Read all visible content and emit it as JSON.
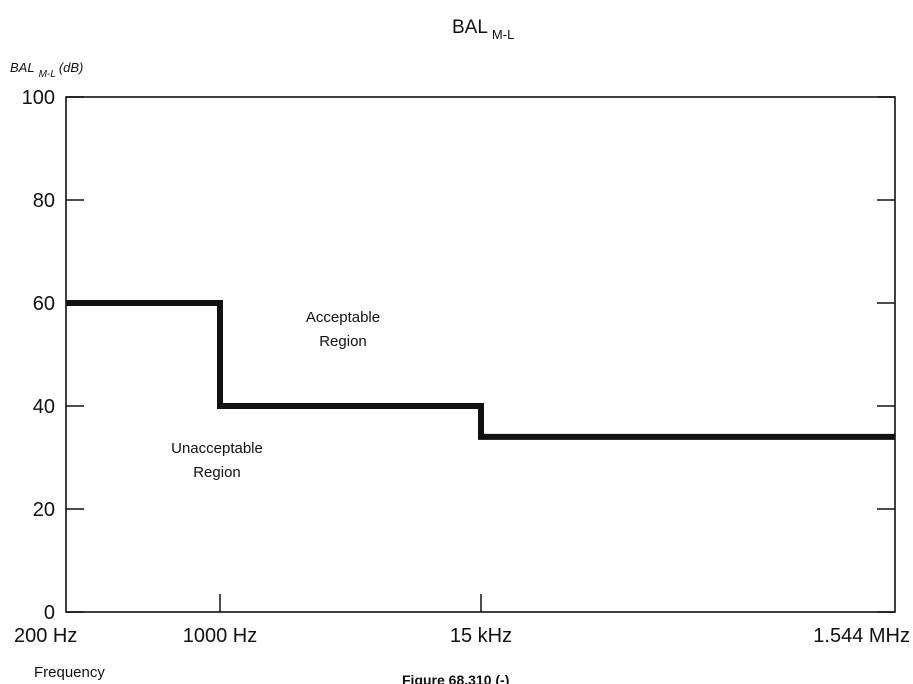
{
  "chart_data": {
    "type": "line",
    "title": "BAL",
    "title_subscript": "M-L",
    "ylabel": "BAL",
    "ylabel_subscript": "M-L",
    "ylabel_unit": "(dB)",
    "xlabel": "Frequency",
    "ylim": [
      0,
      100
    ],
    "yticks": [
      "0",
      "20",
      "40",
      "60",
      "80",
      "100"
    ],
    "xticks": [
      "200 Hz",
      "1000 Hz",
      "15 kHz",
      "1.544 MHz"
    ],
    "grid": false,
    "series": [
      {
        "x": [
          "200 Hz",
          "1000 Hz",
          "1000 Hz",
          "15 kHz",
          "15 kHz",
          "1.544 MHz"
        ],
        "y": [
          60,
          60,
          40,
          40,
          34,
          34
        ]
      }
    ],
    "annotations": {
      "acceptable_line1": "Acceptable",
      "acceptable_line2": "Region",
      "unacceptable_line1": "Unacceptable",
      "unacceptable_line2": "Region"
    },
    "caption": "Figure 68.310 (-)"
  }
}
